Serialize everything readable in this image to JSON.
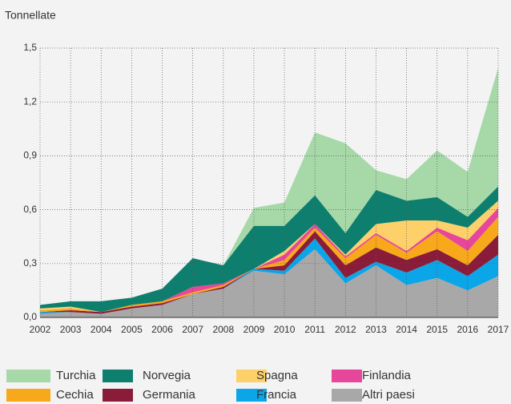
{
  "chart_data": {
    "type": "area",
    "stacked": true,
    "y_label": "Tonnellate",
    "categories": [
      "2002",
      "2003",
      "2004",
      "2005",
      "2006",
      "2007",
      "2008",
      "2009",
      "2010",
      "2011",
      "2012",
      "2013",
      "2014",
      "2015",
      "2016",
      "2017"
    ],
    "series": [
      {
        "name": "Turchia",
        "color": "#a6d8a8",
        "values": [
          0,
          0,
          0,
          0,
          0,
          0,
          0,
          0.1,
          0.13,
          0.35,
          0.5,
          0.11,
          0.12,
          0.26,
          0.25,
          0.66
        ]
      },
      {
        "name": "Norvegia",
        "color": "#0e7f6e",
        "values": [
          0.02,
          0.03,
          0.06,
          0.04,
          0.07,
          0.16,
          0.1,
          0.24,
          0.14,
          0.16,
          0.12,
          0.19,
          0.11,
          0.13,
          0.06,
          0.08
        ]
      },
      {
        "name": "Spagna",
        "color": "#fdd06a",
        "values": [
          0.01,
          0.01,
          0,
          0,
          0,
          0,
          0,
          0,
          0.02,
          0,
          0.01,
          0.05,
          0.17,
          0.04,
          0.07,
          0.04
        ]
      },
      {
        "name": "Finlandia",
        "color": "#e6479a",
        "values": [
          0,
          0,
          0,
          0,
          0,
          0.03,
          0.01,
          0,
          0.03,
          0.02,
          0.01,
          0.01,
          0.01,
          0.02,
          0.06,
          0.05
        ]
      },
      {
        "name": "Cechia",
        "color": "#f7a81b",
        "values": [
          0.01,
          0.01,
          0,
          0.01,
          0.01,
          0.01,
          0.01,
          0,
          0.03,
          0.02,
          0.04,
          0.07,
          0.04,
          0.1,
          0.08,
          0.1
        ]
      },
      {
        "name": "Germania",
        "color": "#8a1c3a",
        "values": [
          0,
          0.01,
          0.01,
          0.01,
          0.01,
          0,
          0.01,
          0,
          0.03,
          0.04,
          0.07,
          0.08,
          0.07,
          0.06,
          0.06,
          0.11
        ]
      },
      {
        "name": "Francia",
        "color": "#0aa6e8",
        "values": [
          0.01,
          0,
          0,
          0,
          0,
          0,
          0,
          0.01,
          0.02,
          0.06,
          0.03,
          0.02,
          0.07,
          0.1,
          0.08,
          0.12
        ]
      },
      {
        "name": "Altri paesi",
        "color": "#a8a8a8",
        "values": [
          0.02,
          0.03,
          0.02,
          0.05,
          0.07,
          0.13,
          0.16,
          0.26,
          0.24,
          0.38,
          0.19,
          0.29,
          0.18,
          0.22,
          0.15,
          0.23
        ]
      }
    ],
    "ylim": [
      0,
      1.5
    ],
    "yticks": [
      {
        "value": 0,
        "label": "0,0"
      },
      {
        "value": 0.3,
        "label": "0,3"
      },
      {
        "value": 0.6,
        "label": "0,6"
      },
      {
        "value": 0.9,
        "label": "0,9"
      },
      {
        "value": 1.2,
        "label": "1,2"
      },
      {
        "value": 1.5,
        "label": "1,5"
      }
    ],
    "grid": true
  }
}
